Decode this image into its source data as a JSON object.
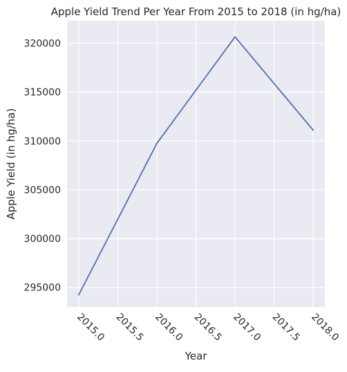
{
  "chart_data": {
    "type": "line",
    "title": "Apple Yield Trend Per Year From 2015 to 2018 (in hg/ha)",
    "xlabel": "Year",
    "ylabel": "Apple Yield (in hg/ha)",
    "x": [
      2015,
      2016,
      2017,
      2018
    ],
    "series": [
      {
        "values": [
          294250,
          309750,
          320650,
          311100
        ]
      }
    ],
    "xlim": [
      2014.85,
      2018.15
    ],
    "ylim": [
      293000,
      322300
    ],
    "x_ticks": [
      2015.0,
      2015.5,
      2016.0,
      2016.5,
      2017.0,
      2017.5,
      2018.0
    ],
    "x_tick_labels": [
      "2015.0",
      "2015.5",
      "2016.0",
      "2016.5",
      "2017.0",
      "2017.5",
      "2018.0"
    ],
    "y_ticks": [
      295000,
      300000,
      305000,
      310000,
      315000,
      320000
    ],
    "y_tick_labels": [
      "295000",
      "300000",
      "305000",
      "310000",
      "315000",
      "320000"
    ],
    "x_tick_rotation": -45,
    "grid": true,
    "legend": "none",
    "colors": {
      "line": "#4c72b0",
      "plot_background": "#eaeaf2",
      "grid": "#ffffff",
      "text": "#262626"
    }
  }
}
